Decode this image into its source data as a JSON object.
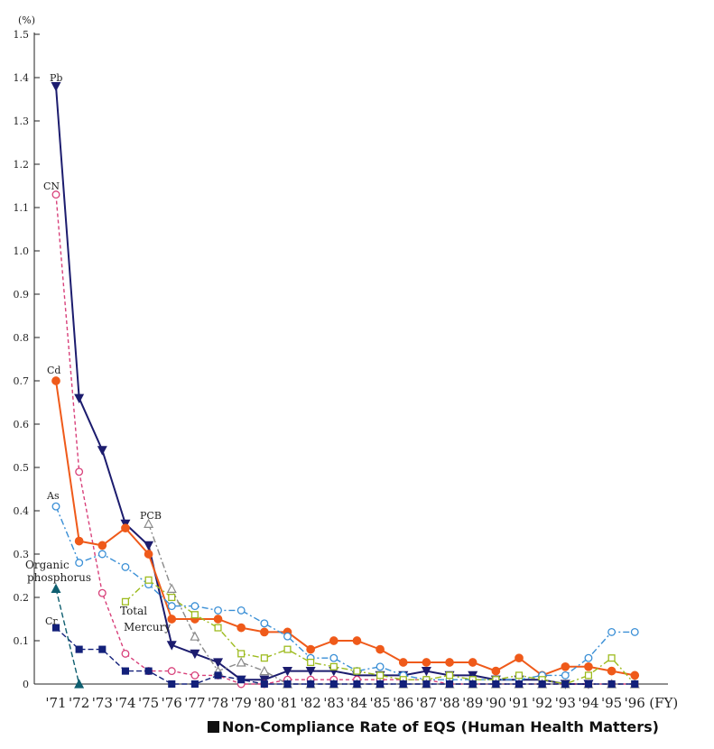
{
  "caption": "Non-Compliance Rate of EQS (Human Health Matters)",
  "chart_data": {
    "type": "line",
    "title": "Non-Compliance Rate of EQS (Human Health Matters)",
    "ylabel": "(%)",
    "xlabel": "(FY)",
    "ylim": [
      0,
      1.5
    ],
    "yticks": [
      0,
      0.1,
      0.2,
      0.3,
      0.4,
      0.5,
      0.6,
      0.7,
      0.8,
      0.9,
      1.0,
      1.1,
      1.2,
      1.3,
      1.4,
      1.5
    ],
    "categories": [
      "'71",
      "'72",
      "'73",
      "'74",
      "'75",
      "'76",
      "'77",
      "'78",
      "'79",
      "'80",
      "'81",
      "'82",
      "'83",
      "'84",
      "'85",
      "'86",
      "'87",
      "'88",
      "'89",
      "'90",
      "'91",
      "'92",
      "'93",
      "'94",
      "'95",
      "'96"
    ],
    "grid": false,
    "legend": "labels beside lines",
    "series": [
      {
        "name": "Pb",
        "color": "#1c1c6e",
        "marker": "triangle-down",
        "filled": true,
        "dash": "",
        "values": [
          1.38,
          0.66,
          0.54,
          0.37,
          0.32,
          0.09,
          0.07,
          0.05,
          0.01,
          0.01,
          0.03,
          0.03,
          0.03,
          0.02,
          0.02,
          0.02,
          0.03,
          0.02,
          0.02,
          0.01,
          0.01,
          0.01,
          0.0,
          0.0,
          null,
          null
        ]
      },
      {
        "name": "CN",
        "color": "#d8407a",
        "marker": "circle",
        "filled": false,
        "dash": "4,3",
        "values": [
          1.13,
          0.49,
          0.21,
          0.07,
          0.03,
          0.03,
          0.02,
          0.02,
          0.0,
          0.0,
          0.01,
          0.01,
          0.01,
          0.01,
          0.01,
          0.01,
          0.01,
          0.0,
          0.0,
          0.0,
          0.0,
          0.0,
          0.0,
          0.0,
          0.0,
          0.0
        ]
      },
      {
        "name": "Cd",
        "color": "#ef5a1a",
        "marker": "circle",
        "filled": true,
        "dash": "",
        "values": [
          0.7,
          0.33,
          0.32,
          0.36,
          0.3,
          0.15,
          0.15,
          0.15,
          0.13,
          0.12,
          0.12,
          0.08,
          0.1,
          0.1,
          0.08,
          0.05,
          0.05,
          0.05,
          0.05,
          0.03,
          0.06,
          0.02,
          0.04,
          0.04,
          0.03,
          0.02
        ]
      },
      {
        "name": "As",
        "color": "#3a8fd6",
        "marker": "circle",
        "filled": false,
        "dash": "7,3,2,3",
        "values": [
          0.41,
          0.28,
          0.3,
          0.27,
          0.23,
          0.18,
          0.18,
          0.17,
          0.17,
          0.14,
          0.11,
          0.06,
          0.06,
          0.03,
          0.04,
          0.02,
          0.01,
          0.01,
          0.01,
          0.01,
          0.01,
          0.02,
          0.02,
          0.06,
          0.12,
          0.12
        ]
      },
      {
        "name": "Total Mercury",
        "color": "#9dbb1e",
        "marker": "square",
        "filled": false,
        "dash": "7,3,2,3",
        "values": [
          null,
          null,
          null,
          0.19,
          0.24,
          0.2,
          0.16,
          0.13,
          0.07,
          0.06,
          0.08,
          0.05,
          0.04,
          0.03,
          0.02,
          0.01,
          0.01,
          0.02,
          0.01,
          0.01,
          0.02,
          0.01,
          0.0,
          0.02,
          0.06,
          0.0
        ]
      },
      {
        "name": "PCB",
        "color": "#8a8a8a",
        "marker": "triangle-up",
        "filled": false,
        "dash": "7,3,2,3",
        "values": [
          null,
          null,
          null,
          null,
          0.37,
          0.22,
          0.11,
          0.03,
          0.05,
          0.03,
          0.0,
          0.0,
          0.0,
          0.0,
          0.0,
          0.0,
          0.0,
          0.0,
          0.0,
          0.0,
          0.0,
          0.0,
          0.0,
          0.0,
          0.0,
          0.0
        ]
      },
      {
        "name": "Cr",
        "color": "#13207a",
        "marker": "square",
        "filled": true,
        "dash": "6,3",
        "values": [
          0.13,
          0.08,
          0.08,
          0.03,
          0.03,
          0.0,
          0.0,
          0.02,
          0.01,
          0.0,
          0.0,
          0.0,
          0.0,
          0.0,
          0.0,
          0.0,
          0.0,
          0.0,
          0.0,
          0.0,
          0.0,
          0.0,
          0.0,
          0.0,
          0.0,
          0.0
        ]
      },
      {
        "name": "Organic phosphorus",
        "color": "#0f5f70",
        "marker": "triangle-up",
        "filled": true,
        "dash": "6,3",
        "values": [
          0.22,
          0.0,
          null,
          null,
          null,
          null,
          null,
          null,
          null,
          null,
          null,
          null,
          null,
          null,
          null,
          null,
          null,
          null,
          null,
          null,
          null,
          null,
          null,
          null,
          null,
          null
        ]
      }
    ]
  }
}
